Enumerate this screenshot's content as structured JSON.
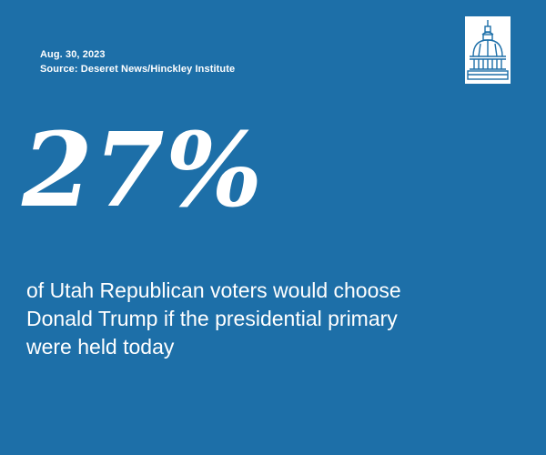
{
  "meta": {
    "date": "Aug. 30, 2023",
    "source": "Source: Deseret News/Hinckley Institute"
  },
  "stat": {
    "value": "27%"
  },
  "description": {
    "line1": "of Utah Republican voters would choose",
    "line2": "Donald Trump if the presidential primary",
    "line3": "were held today"
  },
  "logo": {
    "icon": "capitol-dome-icon"
  },
  "colors": {
    "background": "#1d6fa8",
    "text": "#ffffff"
  }
}
